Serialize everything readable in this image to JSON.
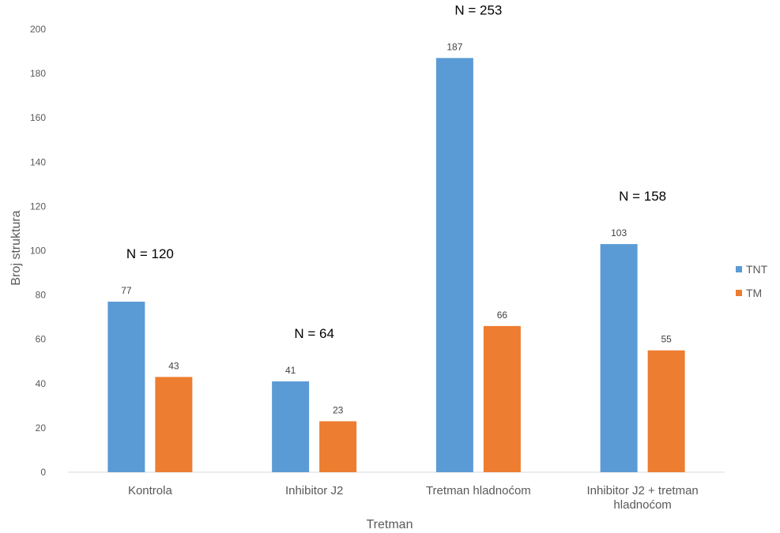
{
  "chart_data": {
    "type": "bar",
    "xlabel": "Tretman",
    "ylabel": "Broj struktura",
    "ylim": [
      0,
      200
    ],
    "yticks": [
      0,
      20,
      40,
      60,
      80,
      100,
      120,
      140,
      160,
      180,
      200
    ],
    "grid": false,
    "legend_position": "right",
    "categories": [
      [
        "Kontrola"
      ],
      [
        "Inhibitor J2"
      ],
      [
        "Tretman hladnoćom"
      ],
      [
        "Inhibitor J2 + tretman",
        "hladnoćom"
      ]
    ],
    "series": [
      {
        "name": "TNT",
        "color": "#5b9bd5",
        "values": [
          77,
          41,
          187,
          103
        ]
      },
      {
        "name": "TM",
        "color": "#ed7d31",
        "values": [
          43,
          23,
          66,
          55
        ]
      }
    ],
    "group_annotations": [
      "N = 120",
      "N = 64",
      "N = 253",
      "N = 158"
    ]
  }
}
